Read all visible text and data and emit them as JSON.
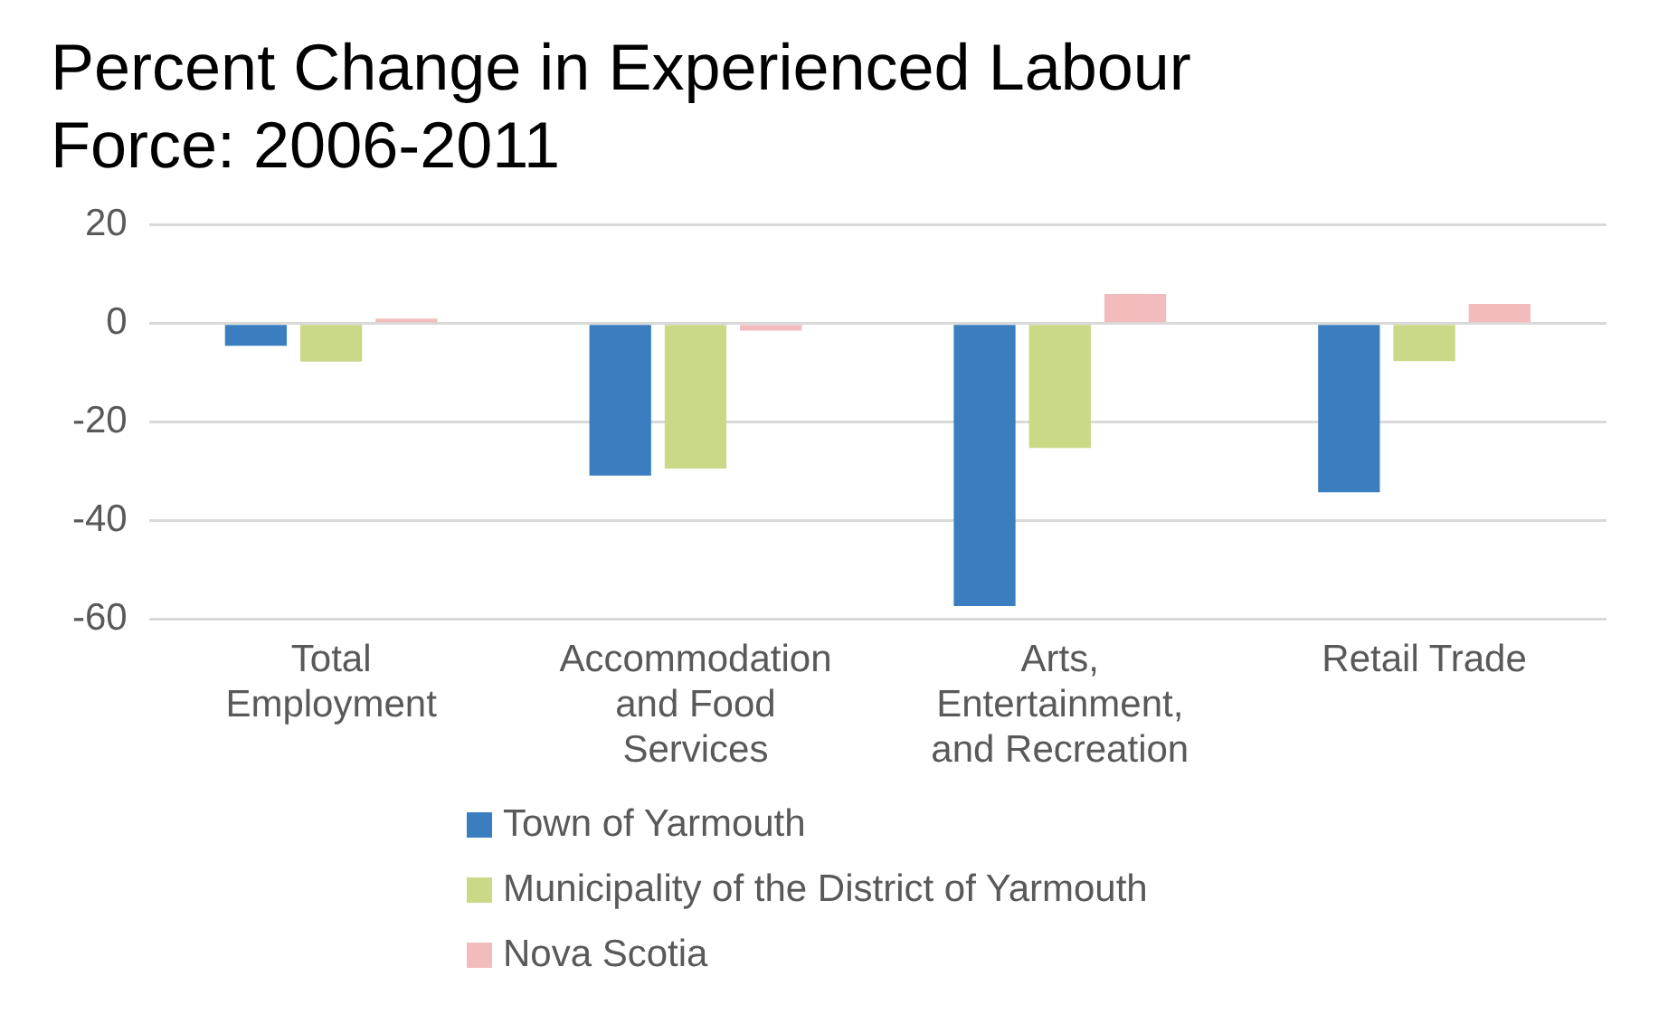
{
  "chart_data": {
    "type": "bar",
    "title": "Percent Change in Experienced Labour Force: 2006-2011",
    "categories": [
      "Total Employment",
      "Accommodation and Food Services",
      "Arts, Entertainment, and Recreation",
      "Retail Trade"
    ],
    "series": [
      {
        "name": "Town of Yarmouth",
        "color": "#3a7ebf",
        "values": [
          -4.5,
          -30.8,
          -57.3,
          -34.2
        ]
      },
      {
        "name": "Municipality of the District of Yarmouth",
        "color": "#c9d986",
        "values": [
          -7.7,
          -29.4,
          -25.2,
          -7.6
        ]
      },
      {
        "name": "Nova Scotia",
        "color": "#f2bcbc",
        "values": [
          1,
          -1.4,
          6,
          4
        ]
      }
    ],
    "ylim": [
      -60,
      20
    ],
    "yticks": [
      -60,
      -40,
      -20,
      0,
      20
    ],
    "grid": "y",
    "legend": "bottom"
  }
}
